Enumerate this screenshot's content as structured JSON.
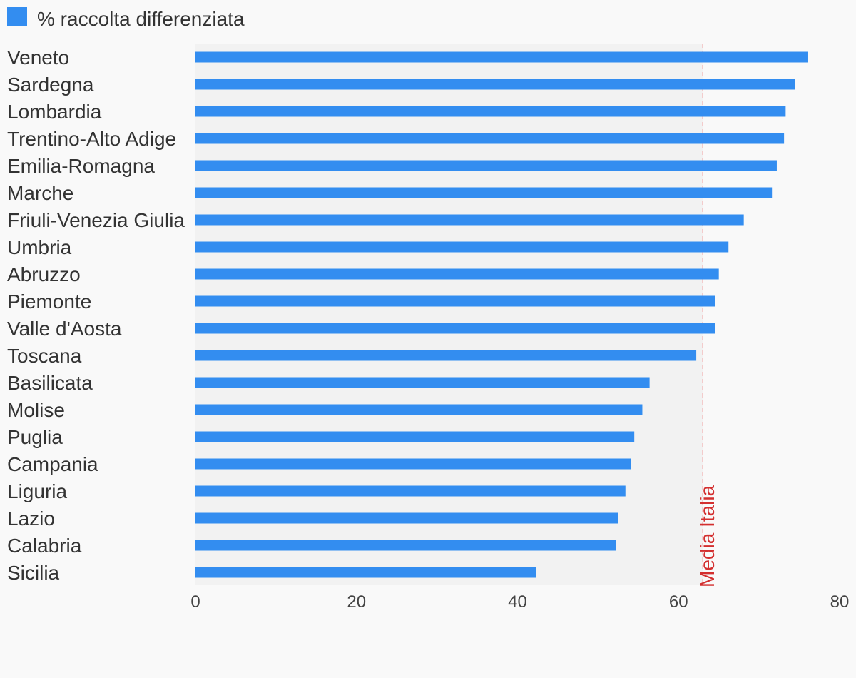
{
  "chart_data": {
    "type": "bar",
    "orientation": "horizontal",
    "legend": {
      "label": "% raccolta differenziata",
      "color": "#338df0",
      "placement": "top-left"
    },
    "categories": [
      "Veneto",
      "Sardegna",
      "Lombardia",
      "Trentino-Alto Adige",
      "Emilia-Romagna",
      "Marche",
      "Friuli-Venezia Giulia",
      "Umbria",
      "Abruzzo",
      "Piemonte",
      "Valle d'Aosta",
      "Toscana",
      "Basilicata",
      "Molise",
      "Puglia",
      "Campania",
      "Liguria",
      "Lazio",
      "Calabria",
      "Sicilia"
    ],
    "series": [
      {
        "name": "% raccolta differenziata",
        "values": [
          76.1,
          74.5,
          73.3,
          73.1,
          72.2,
          71.6,
          68.1,
          66.2,
          65.0,
          64.5,
          64.5,
          62.2,
          56.4,
          55.5,
          54.5,
          54.1,
          53.4,
          52.5,
          52.2,
          42.3
        ]
      }
    ],
    "xlim": [
      0,
      80
    ],
    "xticks": [
      0,
      20,
      40,
      60,
      80
    ],
    "grid": false,
    "reference_line": {
      "label": "Media Italia",
      "value": 63.0,
      "color": "#d32f2f"
    },
    "colors": {
      "bar": "#338df0",
      "plot_background": "#f2f2f2",
      "page_background": "#f9f9f9"
    }
  }
}
